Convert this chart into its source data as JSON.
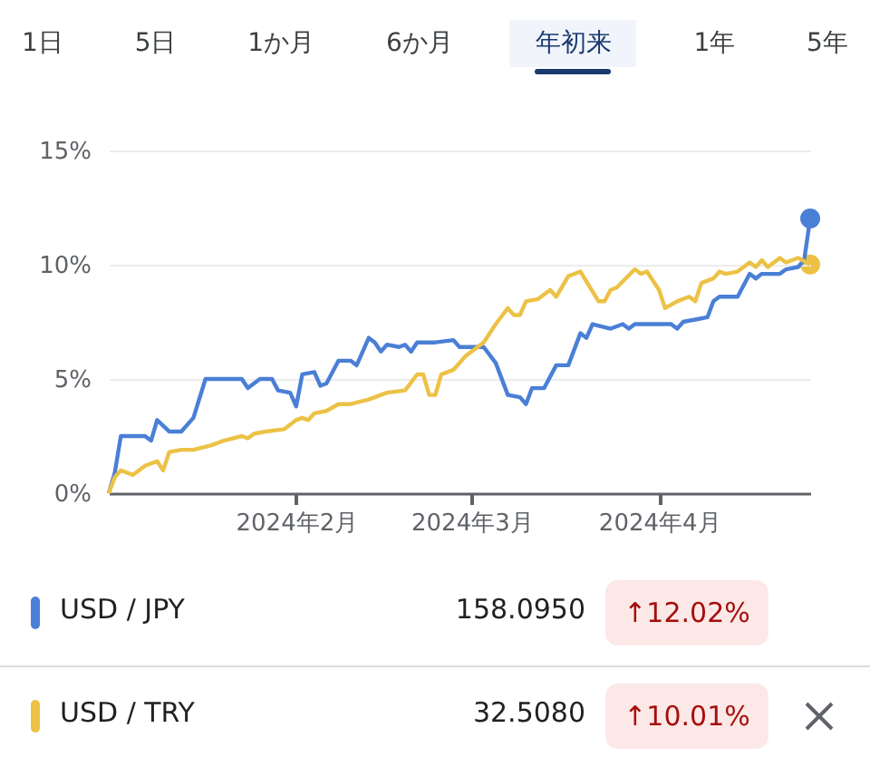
{
  "chart_data": {
    "type": "line",
    "annotations": [
      "1日",
      "5日",
      "1か月",
      "6か月",
      "年初来",
      "1年",
      "5年",
      "158.0950",
      "↑12.02%",
      "32.5080",
      "↑10.01%"
    ],
    "xlim": [
      "2024-01-01",
      "2024-04-26"
    ],
    "xticks": [
      {
        "value": "2024-02-01",
        "label": "2024年2月"
      },
      {
        "value": "2024-03-01",
        "label": "2024年3月"
      },
      {
        "value": "2024-04-01",
        "label": "2024年4月"
      }
    ],
    "ylim": [
      0,
      15
    ],
    "yticks": [
      {
        "value": 0,
        "label": "0%"
      },
      {
        "value": 5,
        "label": "5%"
      },
      {
        "value": 10,
        "label": "10%"
      },
      {
        "value": 15,
        "label": "15%"
      }
    ],
    "grid": "y",
    "legend": "bottom",
    "series": [
      {
        "name": "USD / JPY",
        "color": "#4a7fd6",
        "x": [
          "2024-01-01",
          "2024-01-02",
          "2024-01-03",
          "2024-01-07",
          "2024-01-08",
          "2024-01-09",
          "2024-01-11",
          "2024-01-13",
          "2024-01-15",
          "2024-01-17",
          "2024-01-23",
          "2024-01-24",
          "2024-01-26",
          "2024-01-28",
          "2024-01-29",
          "2024-01-31",
          "2024-02-01",
          "2024-02-02",
          "2024-02-04",
          "2024-02-05",
          "2024-02-06",
          "2024-02-08",
          "2024-02-10",
          "2024-02-11",
          "2024-02-13",
          "2024-02-14",
          "2024-02-15",
          "2024-02-16",
          "2024-02-18",
          "2024-02-19",
          "2024-02-20",
          "2024-02-21",
          "2024-02-24",
          "2024-02-27",
          "2024-02-28",
          "2024-03-03",
          "2024-03-05",
          "2024-03-07",
          "2024-03-09",
          "2024-03-10",
          "2024-03-11",
          "2024-03-13",
          "2024-03-15",
          "2024-03-17",
          "2024-03-19",
          "2024-03-20",
          "2024-03-21",
          "2024-03-24",
          "2024-03-26",
          "2024-03-27",
          "2024-03-28",
          "2024-04-01",
          "2024-04-03",
          "2024-04-04",
          "2024-04-05",
          "2024-04-07",
          "2024-04-09",
          "2024-04-10",
          "2024-04-11",
          "2024-04-14",
          "2024-04-16",
          "2024-04-17",
          "2024-04-18",
          "2024-04-21",
          "2024-04-22",
          "2024-04-24",
          "2024-04-25",
          "2024-04-26"
        ],
        "values": [
          0,
          0.9,
          2.5,
          2.5,
          2.3,
          3.2,
          2.7,
          2.7,
          3.3,
          5.0,
          5.0,
          4.6,
          5.0,
          5.0,
          4.5,
          4.4,
          3.8,
          5.2,
          5.3,
          4.7,
          4.8,
          5.8,
          5.8,
          5.6,
          6.8,
          6.6,
          6.2,
          6.5,
          6.4,
          6.5,
          6.2,
          6.6,
          6.6,
          6.7,
          6.4,
          6.4,
          5.7,
          4.3,
          4.2,
          3.9,
          4.6,
          4.6,
          5.6,
          5.6,
          7.0,
          6.8,
          7.4,
          7.2,
          7.4,
          7.2,
          7.4,
          7.4,
          7.4,
          7.2,
          7.5,
          7.6,
          7.7,
          8.4,
          8.6,
          8.6,
          9.6,
          9.4,
          9.6,
          9.6,
          9.8,
          9.9,
          10.2,
          12.02
        ]
      },
      {
        "name": "USD / TRY",
        "color": "#ecc246",
        "x": [
          "2024-01-01",
          "2024-01-02",
          "2024-01-03",
          "2024-01-05",
          "2024-01-07",
          "2024-01-09",
          "2024-01-10",
          "2024-01-11",
          "2024-01-13",
          "2024-01-15",
          "2024-01-18",
          "2024-01-20",
          "2024-01-23",
          "2024-01-24",
          "2024-01-25",
          "2024-01-27",
          "2024-01-30",
          "2024-02-01",
          "2024-02-02",
          "2024-02-03",
          "2024-02-04",
          "2024-02-06",
          "2024-02-08",
          "2024-02-10",
          "2024-02-13",
          "2024-02-15",
          "2024-02-16",
          "2024-02-19",
          "2024-02-21",
          "2024-02-22",
          "2024-02-23",
          "2024-02-24",
          "2024-02-25",
          "2024-02-27",
          "2024-02-29",
          "2024-03-02",
          "2024-03-03",
          "2024-03-05",
          "2024-03-07",
          "2024-03-08",
          "2024-03-09",
          "2024-03-10",
          "2024-03-12",
          "2024-03-14",
          "2024-03-15",
          "2024-03-17",
          "2024-03-19",
          "2024-03-22",
          "2024-03-23",
          "2024-03-24",
          "2024-03-25",
          "2024-03-28",
          "2024-03-29",
          "2024-03-30",
          "2024-04-01",
          "2024-04-02",
          "2024-04-04",
          "2024-04-06",
          "2024-04-07",
          "2024-04-08",
          "2024-04-10",
          "2024-04-11",
          "2024-04-12",
          "2024-04-14",
          "2024-04-16",
          "2024-04-17",
          "2024-04-18",
          "2024-04-19",
          "2024-04-21",
          "2024-04-22",
          "2024-04-24",
          "2024-04-26"
        ],
        "values": [
          0,
          0.7,
          1.0,
          0.8,
          1.2,
          1.4,
          1.0,
          1.8,
          1.9,
          1.9,
          2.1,
          2.3,
          2.5,
          2.4,
          2.6,
          2.7,
          2.8,
          3.2,
          3.3,
          3.2,
          3.5,
          3.6,
          3.9,
          3.9,
          4.1,
          4.3,
          4.4,
          4.5,
          5.2,
          5.2,
          4.3,
          4.3,
          5.2,
          5.4,
          6.0,
          6.4,
          6.6,
          7.4,
          8.1,
          7.8,
          7.8,
          8.4,
          8.5,
          8.9,
          8.6,
          9.5,
          9.7,
          8.4,
          8.4,
          8.9,
          9.0,
          9.8,
          9.6,
          9.7,
          8.9,
          8.1,
          8.4,
          8.6,
          8.4,
          9.2,
          9.4,
          9.7,
          9.6,
          9.7,
          10.1,
          9.9,
          10.2,
          9.9,
          10.3,
          10.1,
          10.3,
          10.01
        ]
      }
    ]
  }
}
